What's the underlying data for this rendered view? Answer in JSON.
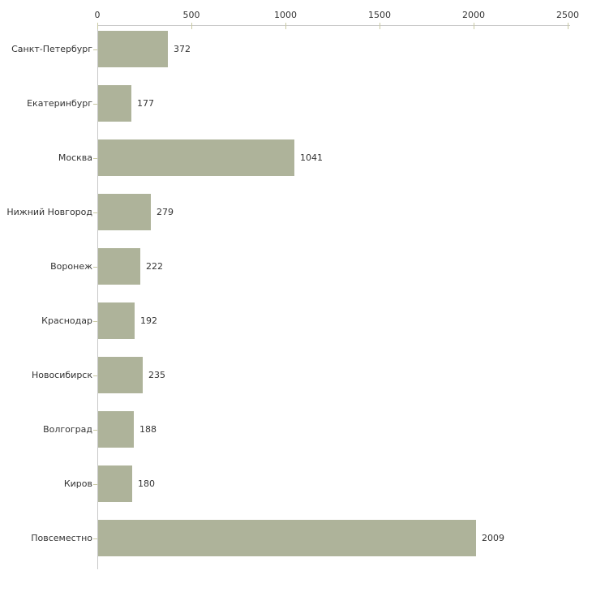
{
  "chart_data": {
    "type": "bar",
    "orientation": "horizontal",
    "title": "",
    "xlabel": "",
    "ylabel": "",
    "categories": [
      "Санкт-Петербург",
      "Екатеринбург",
      "Москва",
      "Нижний Новгород",
      "Воронеж",
      "Краснодар",
      "Новосибирск",
      "Волгоград",
      "Киров",
      "Повсеместно"
    ],
    "values": [
      372,
      177,
      1041,
      279,
      222,
      192,
      235,
      188,
      180,
      2009
    ],
    "value_labels": [
      "372",
      "177",
      "1041",
      "279",
      "222",
      "192",
      "235",
      "188",
      "180",
      "2009"
    ],
    "x_ticks": [
      0,
      500,
      1000,
      1500,
      2000,
      2500
    ],
    "x_tick_labels": [
      "0",
      "500",
      "1000",
      "1500",
      "2000",
      "2500"
    ],
    "xlim": [
      0,
      2500
    ],
    "axis_position": "top",
    "grid": false,
    "legend": false,
    "colors": {
      "bar_fill": "#aeb39a",
      "axis_line": "#c8c8c8",
      "tick_mark": "#c9c9a3",
      "text": "#333333",
      "background": "#ffffff"
    }
  }
}
